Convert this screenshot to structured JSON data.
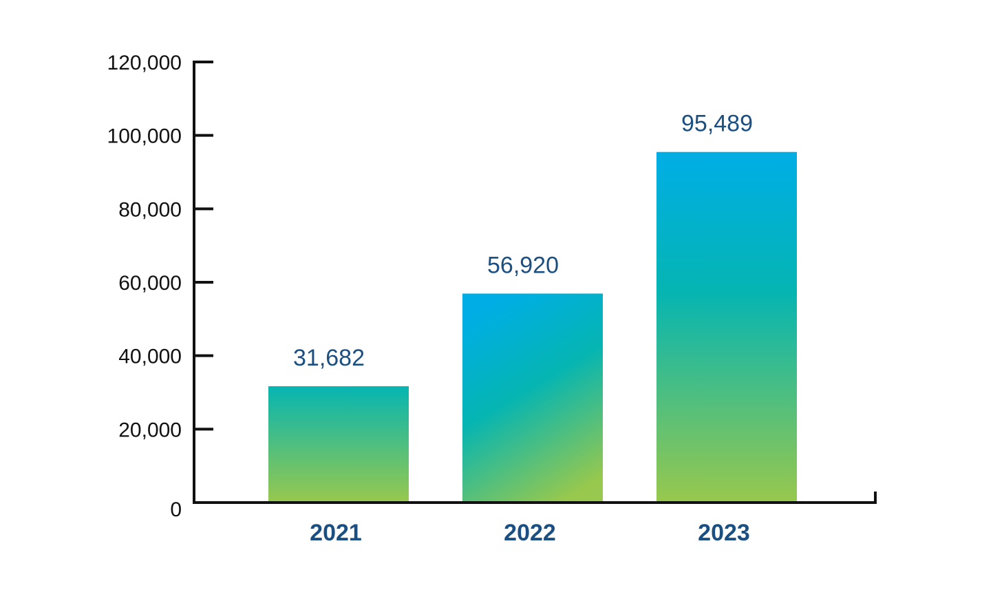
{
  "chart_data": {
    "type": "bar",
    "categories": [
      "2021",
      "2022",
      "2023"
    ],
    "values": [
      31682,
      56920,
      95489
    ],
    "value_labels": [
      "31,682",
      "56,920",
      "95,489"
    ],
    "ylim": [
      0,
      120000
    ],
    "yticks": [
      0,
      20000,
      40000,
      60000,
      80000,
      100000,
      120000
    ],
    "ytick_labels": [
      "0",
      "20,000",
      "40,000",
      "60,000",
      "80,000",
      "100,000",
      "120,000"
    ],
    "grid": false,
    "legend": "none"
  },
  "colors": {
    "label_text": "#1b4f82",
    "axis": "#111111",
    "bar_top": "#00aee6",
    "bar_mid": "#05b5b2",
    "bar_bottom": "#98c84d"
  }
}
